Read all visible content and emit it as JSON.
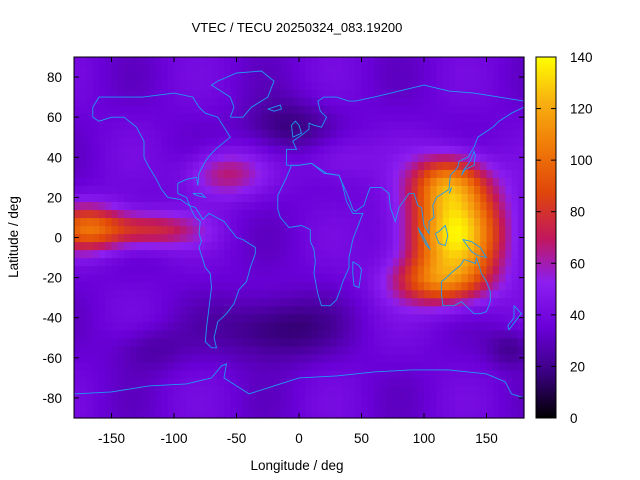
{
  "chart_data": {
    "type": "heatmap",
    "title": "VTEC / TECU 20250324_083.19200",
    "xlabel": "Longitude / deg",
    "ylabel": "Latitude / deg",
    "xlim": [
      -180,
      180
    ],
    "ylim": [
      -90,
      90
    ],
    "x_ticks": [
      -150,
      -100,
      -50,
      0,
      50,
      100,
      150
    ],
    "y_ticks": [
      -80,
      -60,
      -40,
      -20,
      0,
      20,
      40,
      60,
      80
    ],
    "colorbar": {
      "min": 0,
      "max": 140,
      "ticks": [
        0,
        20,
        40,
        60,
        80,
        100,
        120,
        140
      ],
      "palette": [
        "#000000",
        "#3a0080",
        "#6a00d8",
        "#8c1ef0",
        "#c2185b",
        "#e0460a",
        "#f07a08",
        "#f8b010",
        "#ffff00"
      ]
    },
    "overlay": "world coastlines",
    "features": [
      {
        "name": "peak-asia-pacific",
        "lon": 125,
        "lat": 0,
        "value": 135
      },
      {
        "name": "crest-east-pacific",
        "lon": -160,
        "lat": 5,
        "value": 90
      },
      {
        "name": "trough-south-atlantic",
        "lon": -15,
        "lat": -45,
        "value": 12
      },
      {
        "name": "trough-north-atlantic",
        "lon": -10,
        "lat": 55,
        "value": 18
      }
    ]
  }
}
